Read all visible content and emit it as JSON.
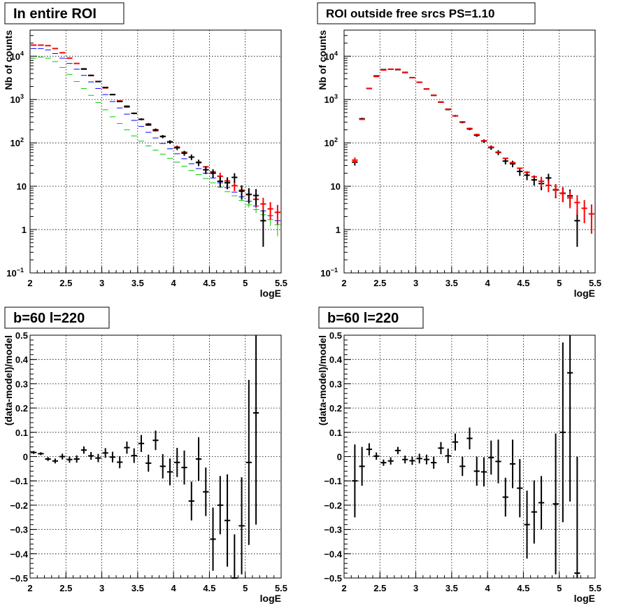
{
  "colors": {
    "data": "#000000",
    "model_total": "#ff0000",
    "model_blue": "#0000ff",
    "model_green": "#00cc00",
    "grid": "#000000",
    "frame": "#000000"
  },
  "chart_data": [
    {
      "id": "p1",
      "type": "scatter",
      "title": "In entire ROI",
      "xlabel": "logE",
      "ylabel": "Nb of counts",
      "xlim": [
        2,
        5.5
      ],
      "ylim": [
        0.1,
        40000
      ],
      "log_y": true,
      "grid": true,
      "x_ticks": [
        "2",
        "2.5",
        "3",
        "3.5",
        "4",
        "4.5",
        "5",
        "5.5"
      ],
      "y_ticks": [
        {
          "v": 0.1,
          "base": "10",
          "sup": "−1"
        },
        {
          "v": 1,
          "base": "1",
          "sup": ""
        },
        {
          "v": 10,
          "base": "10",
          "sup": ""
        },
        {
          "v": 100,
          "base": "10",
          "sup": "2"
        },
        {
          "v": 1000,
          "base": "10",
          "sup": "3"
        },
        {
          "v": 10000,
          "base": "10",
          "sup": "4"
        }
      ],
      "bin_half_width": 0.05,
      "series": [
        {
          "name": "",
          "color_key": "model_green",
          "x": [
            2.05,
            2.15,
            2.25,
            2.35,
            2.45,
            2.55,
            2.65,
            2.75,
            2.85,
            2.95,
            3.05,
            3.15,
            3.25,
            3.35,
            3.45,
            3.55,
            3.65,
            3.75,
            3.85,
            3.95,
            4.05,
            4.15,
            4.25,
            4.35,
            4.45,
            4.55,
            4.65,
            4.75,
            4.85,
            4.95,
            5.05,
            5.15,
            5.25,
            5.35,
            5.45
          ],
          "y": [
            9000,
            9500,
            9000,
            7500,
            5500,
            3800,
            2600,
            1800,
            1250,
            850,
            580,
            400,
            280,
            200,
            145,
            110,
            85,
            68,
            55,
            44,
            36,
            29,
            23,
            18.5,
            15,
            12,
            9.5,
            7.5,
            6,
            4.7,
            3.7,
            2.9,
            2.2,
            1.7,
            1.3
          ],
          "yerr": [
            0,
            0,
            0,
            0,
            0,
            0,
            0,
            0,
            0,
            0,
            0,
            0,
            0,
            0,
            0,
            0,
            0,
            0,
            0,
            0,
            0,
            0,
            0,
            0,
            0,
            0,
            0,
            0,
            0,
            0,
            0.5,
            0.5,
            0.5,
            0.5,
            0.6
          ]
        },
        {
          "name": "",
          "color_key": "model_blue",
          "x": [
            2.05,
            2.15,
            2.25,
            2.35,
            2.45,
            2.55,
            2.65,
            2.75,
            2.85,
            2.95,
            3.05,
            3.15,
            3.25,
            3.35,
            3.45,
            3.55,
            3.65,
            3.75,
            3.85,
            3.95,
            4.05,
            4.15,
            4.25,
            4.35,
            4.45,
            4.55,
            4.65,
            4.75,
            4.85,
            4.95,
            5.05,
            5.15,
            5.25,
            5.35,
            5.45
          ],
          "y": [
            15000,
            15000,
            14000,
            11500,
            9000,
            6800,
            5000,
            3600,
            2550,
            1800,
            1300,
            900,
            640,
            460,
            330,
            240,
            175,
            130,
            97,
            73,
            56,
            43,
            33,
            25.5,
            20,
            15.5,
            12,
            9.3,
            7.3,
            5.7,
            4.5,
            3.5,
            2.7,
            2.1,
            1.6
          ],
          "yerr": [
            0,
            0,
            0,
            0,
            0,
            0,
            0,
            0,
            0,
            0,
            0,
            0,
            0,
            0,
            0,
            0,
            0,
            0,
            0,
            0,
            0,
            0,
            0,
            0,
            0,
            0,
            0,
            0,
            0,
            0,
            0,
            0,
            0,
            0,
            0
          ]
        },
        {
          "name": "",
          "color_key": "model_total",
          "x": [
            2.05,
            2.15,
            2.25,
            2.35,
            2.45,
            2.55,
            2.65,
            2.75,
            2.85,
            2.95,
            3.05,
            3.15,
            3.25,
            3.35,
            3.45,
            3.55,
            3.65,
            3.75,
            3.85,
            3.95,
            4.05,
            4.15,
            4.25,
            4.35,
            4.45,
            4.55,
            4.65,
            4.75,
            4.85,
            4.95,
            5.05,
            5.15,
            5.25,
            5.35,
            5.45
          ],
          "y": [
            18000,
            18000,
            17500,
            15000,
            12000,
            9000,
            6800,
            5000,
            3600,
            2600,
            1850,
            1300,
            930,
            670,
            480,
            350,
            255,
            190,
            142,
            106,
            80,
            61,
            47,
            36,
            28,
            21.5,
            17,
            13.2,
            10.3,
            8.1,
            6.4,
            5,
            3.9,
            3,
            2.5
          ],
          "yerr": [
            0,
            0,
            0,
            0,
            0,
            0,
            0,
            0,
            0,
            0,
            0,
            0,
            0,
            0,
            0,
            0,
            0,
            0,
            0,
            0,
            0,
            0,
            0,
            0,
            0,
            0,
            3.5,
            3,
            2.6,
            2.3,
            2,
            1.8,
            1.5,
            1.3,
            1.2
          ]
        },
        {
          "name": "",
          "color_key": "data",
          "x": [
            2.75,
            2.85,
            2.95,
            3.05,
            3.15,
            3.25,
            3.35,
            3.45,
            3.55,
            3.65,
            3.75,
            3.85,
            3.95,
            4.05,
            4.15,
            4.25,
            4.35,
            4.45,
            4.55,
            4.65,
            4.75,
            4.85,
            4.95,
            5.05,
            5.15,
            5.25
          ],
          "y": [
            5100,
            3600,
            2600,
            1900,
            1300,
            900,
            700,
            480,
            350,
            270,
            200,
            140,
            105,
            77,
            58,
            47,
            35,
            24,
            20,
            13,
            12,
            16,
            7.7,
            6.5,
            6.1,
            1.6
          ],
          "yerr": [
            70,
            60,
            51,
            44,
            36,
            30,
            26,
            22,
            19,
            16,
            14,
            12,
            10,
            8.8,
            7.6,
            6.9,
            5.9,
            4.9,
            4.5,
            3.6,
            3.5,
            4,
            2.8,
            2.5,
            2.5,
            1.2
          ]
        }
      ]
    },
    {
      "id": "p2",
      "type": "scatter",
      "title": "ROI outside free srcs PS=1.10",
      "xlabel": "logE",
      "ylabel": "Nb of counts",
      "xlim": [
        2,
        5.5
      ],
      "ylim": [
        0.1,
        40000
      ],
      "log_y": true,
      "grid": true,
      "x_ticks": [
        "2",
        "2.5",
        "3",
        "3.5",
        "4",
        "4.5",
        "5",
        "5.5"
      ],
      "y_ticks": [
        {
          "v": 0.1,
          "base": "10",
          "sup": "−1"
        },
        {
          "v": 1,
          "base": "1",
          "sup": ""
        },
        {
          "v": 10,
          "base": "10",
          "sup": ""
        },
        {
          "v": 100,
          "base": "10",
          "sup": "2"
        },
        {
          "v": 1000,
          "base": "10",
          "sup": "3"
        },
        {
          "v": 10000,
          "base": "10",
          "sup": "4"
        }
      ],
      "bin_half_width": 0.05,
      "series": [
        {
          "name": "",
          "color_key": "data",
          "x": [
            2.15,
            2.25,
            2.35,
            2.45,
            2.55,
            2.65,
            2.75,
            2.85,
            2.95,
            3.05,
            3.15,
            3.25,
            3.35,
            3.45,
            3.55,
            3.65,
            3.75,
            3.85,
            3.95,
            4.05,
            4.15,
            4.25,
            4.35,
            4.45,
            4.55,
            4.65,
            4.75,
            4.85,
            4.95,
            5.05,
            5.15,
            5.25
          ],
          "y": [
            36,
            360,
            1800,
            3500,
            4900,
            5000,
            4900,
            4200,
            3200,
            2500,
            1750,
            1250,
            870,
            590,
            420,
            300,
            210,
            150,
            110,
            78,
            60,
            38,
            33,
            22,
            18,
            14,
            11.5,
            15.5,
            8.2,
            6.9,
            6,
            1.6
          ],
          "yerr": [
            6,
            19,
            42,
            59,
            70,
            71,
            70,
            65,
            57,
            50,
            42,
            35,
            29,
            24,
            20,
            17,
            14,
            12,
            10,
            8.8,
            7.7,
            6.2,
            5.7,
            4.7,
            4.2,
            3.7,
            3.4,
            3.9,
            2.9,
            2.6,
            2.4,
            1.2
          ]
        },
        {
          "name": "",
          "color_key": "model_total",
          "x": [
            2.15,
            2.25,
            2.35,
            2.45,
            2.55,
            2.65,
            2.75,
            2.85,
            2.95,
            3.05,
            3.15,
            3.25,
            3.35,
            3.45,
            3.55,
            3.65,
            3.75,
            3.85,
            3.95,
            4.05,
            4.15,
            4.25,
            4.35,
            4.45,
            4.55,
            4.65,
            4.75,
            4.85,
            4.95,
            5.05,
            5.15,
            5.25,
            5.35,
            5.45
          ],
          "y": [
            40,
            350,
            1800,
            3400,
            4800,
            5000,
            5000,
            4250,
            3200,
            2500,
            1750,
            1250,
            880,
            600,
            420,
            305,
            215,
            155,
            112,
            80,
            61,
            44,
            35,
            26,
            21,
            16.5,
            13,
            10.5,
            8.4,
            6.8,
            5.4,
            4.2,
            3.1,
            2.3
          ],
          "yerr": [
            6,
            0,
            0,
            0,
            0,
            0,
            0,
            0,
            0,
            0,
            0,
            0,
            0,
            0,
            0,
            0,
            0,
            0,
            0,
            0,
            0,
            0,
            0,
            0,
            0,
            0,
            3.5,
            3.2,
            2.8,
            2.5,
            2.3,
            2,
            1.7,
            1.5
          ]
        }
      ]
    },
    {
      "id": "p3",
      "type": "scatter",
      "title": "b=60 l=220",
      "xlabel": "logE",
      "ylabel": "(data-model)/model",
      "xlim": [
        2,
        5.5
      ],
      "ylim": [
        -0.5,
        0.5
      ],
      "log_y": false,
      "grid": true,
      "x_ticks": [
        "2",
        "2.5",
        "3",
        "3.5",
        "4",
        "4.5",
        "5",
        "5.5"
      ],
      "y_ticks_lin": [
        "−0.5",
        "−0.4",
        "−0.3",
        "−0.2",
        "−0.1",
        "0",
        "0.1",
        "0.2",
        "0.3",
        "0.4",
        "0.5"
      ],
      "bin_half_width": 0.05,
      "series": [
        {
          "name": "",
          "color_key": "data",
          "x": [
            2.05,
            2.15,
            2.25,
            2.35,
            2.45,
            2.55,
            2.65,
            2.75,
            2.85,
            2.95,
            3.05,
            3.15,
            3.25,
            3.35,
            3.45,
            3.55,
            3.65,
            3.75,
            3.85,
            3.95,
            4.05,
            4.15,
            4.25,
            4.35,
            4.45,
            4.55,
            4.65,
            4.75,
            4.85,
            4.95,
            5.05,
            5.15
          ],
          "y": [
            0.017,
            0.012,
            -0.01,
            -0.018,
            0.0,
            -0.012,
            -0.01,
            0.027,
            0.003,
            -0.006,
            0.015,
            -0.002,
            -0.023,
            0.037,
            0.004,
            0.054,
            -0.027,
            0.067,
            -0.04,
            -0.063,
            -0.024,
            -0.045,
            -0.183,
            -0.01,
            -0.145,
            -0.34,
            -0.2,
            -0.263,
            -0.5,
            -0.285,
            -0.024,
            0.18
          ],
          "yerr": [
            0.006,
            0.006,
            0.008,
            0.01,
            0.012,
            0.013,
            0.015,
            0.015,
            0.016,
            0.017,
            0.02,
            0.022,
            0.025,
            0.025,
            0.03,
            0.035,
            0.035,
            0.04,
            0.05,
            0.055,
            0.06,
            0.07,
            0.08,
            0.09,
            0.1,
            0.13,
            0.12,
            0.19,
            0.18,
            0.2,
            0.34,
            0.46
          ]
        }
      ]
    },
    {
      "id": "p4",
      "type": "scatter",
      "title": "b=60 l=220",
      "xlabel": "logE",
      "ylabel": "(data-model)/model",
      "xlim": [
        2,
        5.5
      ],
      "ylim": [
        -0.5,
        0.5
      ],
      "log_y": false,
      "grid": true,
      "x_ticks": [
        "2",
        "2.5",
        "3",
        "3.5",
        "4",
        "4.5",
        "5",
        "5.5"
      ],
      "y_ticks_lin": [
        "−0.5",
        "−0.4",
        "−0.3",
        "−0.2",
        "−0.1",
        "0",
        "0.1",
        "0.2",
        "0.3",
        "0.4",
        "0.5"
      ],
      "bin_half_width": 0.05,
      "series": [
        {
          "name": "",
          "color_key": "data",
          "x": [
            2.15,
            2.25,
            2.35,
            2.45,
            2.55,
            2.65,
            2.75,
            2.85,
            2.95,
            3.05,
            3.15,
            3.25,
            3.35,
            3.45,
            3.55,
            3.65,
            3.75,
            3.85,
            3.95,
            4.05,
            4.15,
            4.25,
            4.35,
            4.45,
            4.55,
            4.65,
            4.75,
            4.95,
            5.05,
            5.15,
            5.25
          ],
          "y": [
            -0.1,
            -0.04,
            0.03,
            0.002,
            -0.025,
            -0.018,
            0.025,
            -0.012,
            -0.017,
            -0.008,
            -0.012,
            -0.025,
            0.035,
            0.003,
            0.06,
            -0.04,
            0.075,
            -0.06,
            -0.063,
            -0.004,
            -0.02,
            -0.167,
            -0.03,
            -0.13,
            -0.28,
            -0.228,
            -0.19,
            -0.195,
            0.1,
            0.345,
            -0.48
          ],
          "yerr": [
            0.15,
            0.08,
            0.025,
            0.015,
            0.013,
            0.015,
            0.015,
            0.016,
            0.017,
            0.02,
            0.02,
            0.025,
            0.025,
            0.03,
            0.035,
            0.04,
            0.045,
            0.06,
            0.06,
            0.07,
            0.09,
            0.08,
            0.1,
            0.12,
            0.14,
            0.13,
            0.11,
            0.29,
            0.37,
            0.53,
            0.48
          ]
        }
      ]
    }
  ]
}
